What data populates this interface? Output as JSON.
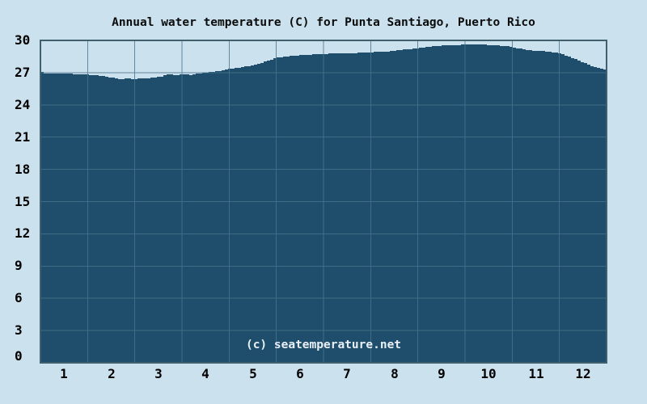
{
  "chart_data": {
    "type": "area",
    "title": "Annual water temperature (C) for Punta Santiago, Puerto Rico",
    "watermark": "(c) seatemperature.net",
    "xlabel": "",
    "ylabel": "",
    "xlim": [
      0,
      12
    ],
    "ylim": [
      0,
      30
    ],
    "grid": true,
    "legend": "none",
    "y_ticks": [
      0,
      3,
      6,
      9,
      12,
      15,
      18,
      21,
      24,
      27,
      30
    ],
    "x_tick_labels": [
      "1",
      "2",
      "3",
      "4",
      "5",
      "6",
      "7",
      "8",
      "9",
      "10",
      "11",
      "12"
    ],
    "x_tick_positions": [
      0.5,
      1.5,
      2.5,
      3.5,
      4.5,
      5.5,
      6.5,
      7.5,
      8.5,
      9.5,
      10.5,
      11.5
    ],
    "categories": [
      "Jan",
      "Feb",
      "Mar",
      "Apr",
      "May",
      "Jun",
      "Jul",
      "Aug",
      "Sep",
      "Oct",
      "Nov",
      "Dec"
    ],
    "values": [
      26.9,
      26.6,
      26.6,
      26.9,
      27.6,
      28.5,
      28.8,
      29.1,
      29.5,
      29.6,
      29.1,
      27.9
    ],
    "series": [
      {
        "name": "Water temperature (C)",
        "points_t": [
          0,
          0.04,
          0.6,
          1.0,
          1.2,
          1.4,
          1.55,
          1.68,
          1.8,
          1.95,
          2.1,
          2.3,
          2.5,
          2.7,
          2.85,
          3.0,
          3.15,
          3.3,
          3.6,
          3.8,
          4.0,
          4.3,
          4.6,
          4.85,
          5.0,
          5.4,
          5.8,
          6.0,
          6.5,
          7.0,
          7.4,
          7.7,
          8.0,
          8.3,
          8.6,
          9.0,
          9.25,
          9.5,
          9.8,
          10.0,
          10.3,
          10.6,
          10.9,
          11.0,
          11.2,
          11.4,
          11.6,
          11.8,
          11.9,
          12.0
        ],
        "points_v": [
          27.1,
          26.95,
          26.9,
          26.8,
          26.75,
          26.6,
          26.5,
          26.35,
          26.5,
          26.4,
          26.45,
          26.5,
          26.6,
          26.85,
          26.75,
          26.85,
          26.8,
          26.9,
          27.05,
          27.2,
          27.35,
          27.55,
          27.8,
          28.2,
          28.4,
          28.6,
          28.7,
          28.75,
          28.8,
          28.9,
          29.0,
          29.15,
          29.3,
          29.45,
          29.55,
          29.6,
          29.65,
          29.55,
          29.5,
          29.35,
          29.1,
          29.0,
          28.85,
          28.75,
          28.45,
          28.1,
          27.7,
          27.4,
          27.3,
          27.25
        ]
      }
    ],
    "colors": {
      "background": "#cbe1ee",
      "fill": "#1e4e6c",
      "grid": "rgba(72,116,140,0.82)",
      "border": "#41606e",
      "text": "#0b0c0c",
      "watermark": "#e9eff4"
    }
  }
}
